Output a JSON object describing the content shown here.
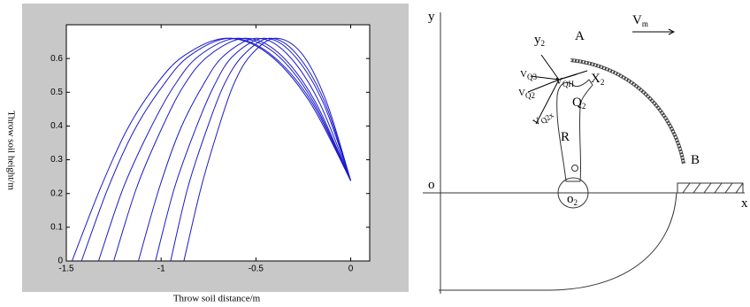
{
  "chart_data": {
    "type": "line",
    "x_label": "Throw soil distance/m",
    "y_label": "Throw soil height/m",
    "xlim": [
      -1.5,
      0.1
    ],
    "ylim": [
      0,
      0.7
    ],
    "xticks": [
      -1.5,
      -1,
      -0.5,
      0
    ],
    "yticks": [
      0,
      0.1,
      0.2,
      0.3,
      0.4,
      0.5,
      0.6
    ],
    "color": "#1a1acc",
    "series": [
      {
        "x": [
          -1.47,
          -1.32,
          -1.18,
          -1.03,
          -0.88,
          -0.66,
          -0.44,
          -0.22,
          0
        ],
        "values": [
          0,
          0.216,
          0.389,
          0.52,
          0.608,
          0.66,
          0.616,
          0.475,
          0.238
        ]
      },
      {
        "x": [
          -1.42,
          -1.28,
          -1.14,
          -0.99,
          -0.85,
          -0.64,
          -0.43,
          -0.21,
          0
        ],
        "values": [
          0,
          0.216,
          0.389,
          0.52,
          0.608,
          0.66,
          0.616,
          0.475,
          0.238
        ]
      },
      {
        "x": [
          -1.33,
          -1.2,
          -1.06,
          -0.93,
          -0.8,
          -0.6,
          -0.4,
          -0.2,
          0
        ],
        "values": [
          0,
          0.216,
          0.389,
          0.52,
          0.608,
          0.66,
          0.616,
          0.475,
          0.238
        ]
      },
      {
        "x": [
          -1.25,
          -1.13,
          -1.0,
          -0.88,
          -0.75,
          -0.56,
          -0.38,
          -0.19,
          0
        ],
        "values": [
          0,
          0.216,
          0.389,
          0.52,
          0.608,
          0.66,
          0.616,
          0.475,
          0.238
        ]
      },
      {
        "x": [
          -1.12,
          -1.01,
          -0.9,
          -0.78,
          -0.67,
          -0.5,
          -0.34,
          -0.17,
          0
        ],
        "values": [
          0,
          0.216,
          0.389,
          0.52,
          0.608,
          0.66,
          0.616,
          0.475,
          0.238
        ]
      },
      {
        "x": [
          -1.03,
          -0.93,
          -0.82,
          -0.72,
          -0.62,
          -0.46,
          -0.31,
          -0.15,
          0
        ],
        "values": [
          0,
          0.216,
          0.389,
          0.52,
          0.608,
          0.66,
          0.616,
          0.475,
          0.238
        ]
      },
      {
        "x": [
          -0.95,
          -0.86,
          -0.76,
          -0.67,
          -0.57,
          -0.43,
          -0.29,
          -0.14,
          0
        ],
        "values": [
          0,
          0.216,
          0.389,
          0.52,
          0.608,
          0.66,
          0.616,
          0.475,
          0.238
        ]
      },
      {
        "x": [
          -0.88,
          -0.79,
          -0.7,
          -0.62,
          -0.53,
          -0.4,
          -0.26,
          -0.13,
          0
        ],
        "values": [
          0,
          0.216,
          0.389,
          0.52,
          0.608,
          0.66,
          0.616,
          0.475,
          0.238
        ]
      }
    ]
  },
  "diagram": {
    "labels": [
      {
        "text": "y"
      },
      {
        "text": "A"
      },
      {
        "text": "V",
        "sub": "m"
      },
      {
        "text": "y",
        "sub": "2"
      },
      {
        "text": "V",
        "sub": "Q3"
      },
      {
        "text": "V",
        "sub": "QH"
      },
      {
        "text": "X",
        "sub": "2"
      },
      {
        "text": "V",
        "sub": "Q2"
      },
      {
        "text": "Q",
        "sub": "2"
      },
      {
        "text": "V",
        "sub": "Q2x"
      },
      {
        "text": "R"
      },
      {
        "text": "B"
      },
      {
        "text": "o"
      },
      {
        "text": "o",
        "sub": "2"
      },
      {
        "text": "x"
      }
    ]
  }
}
